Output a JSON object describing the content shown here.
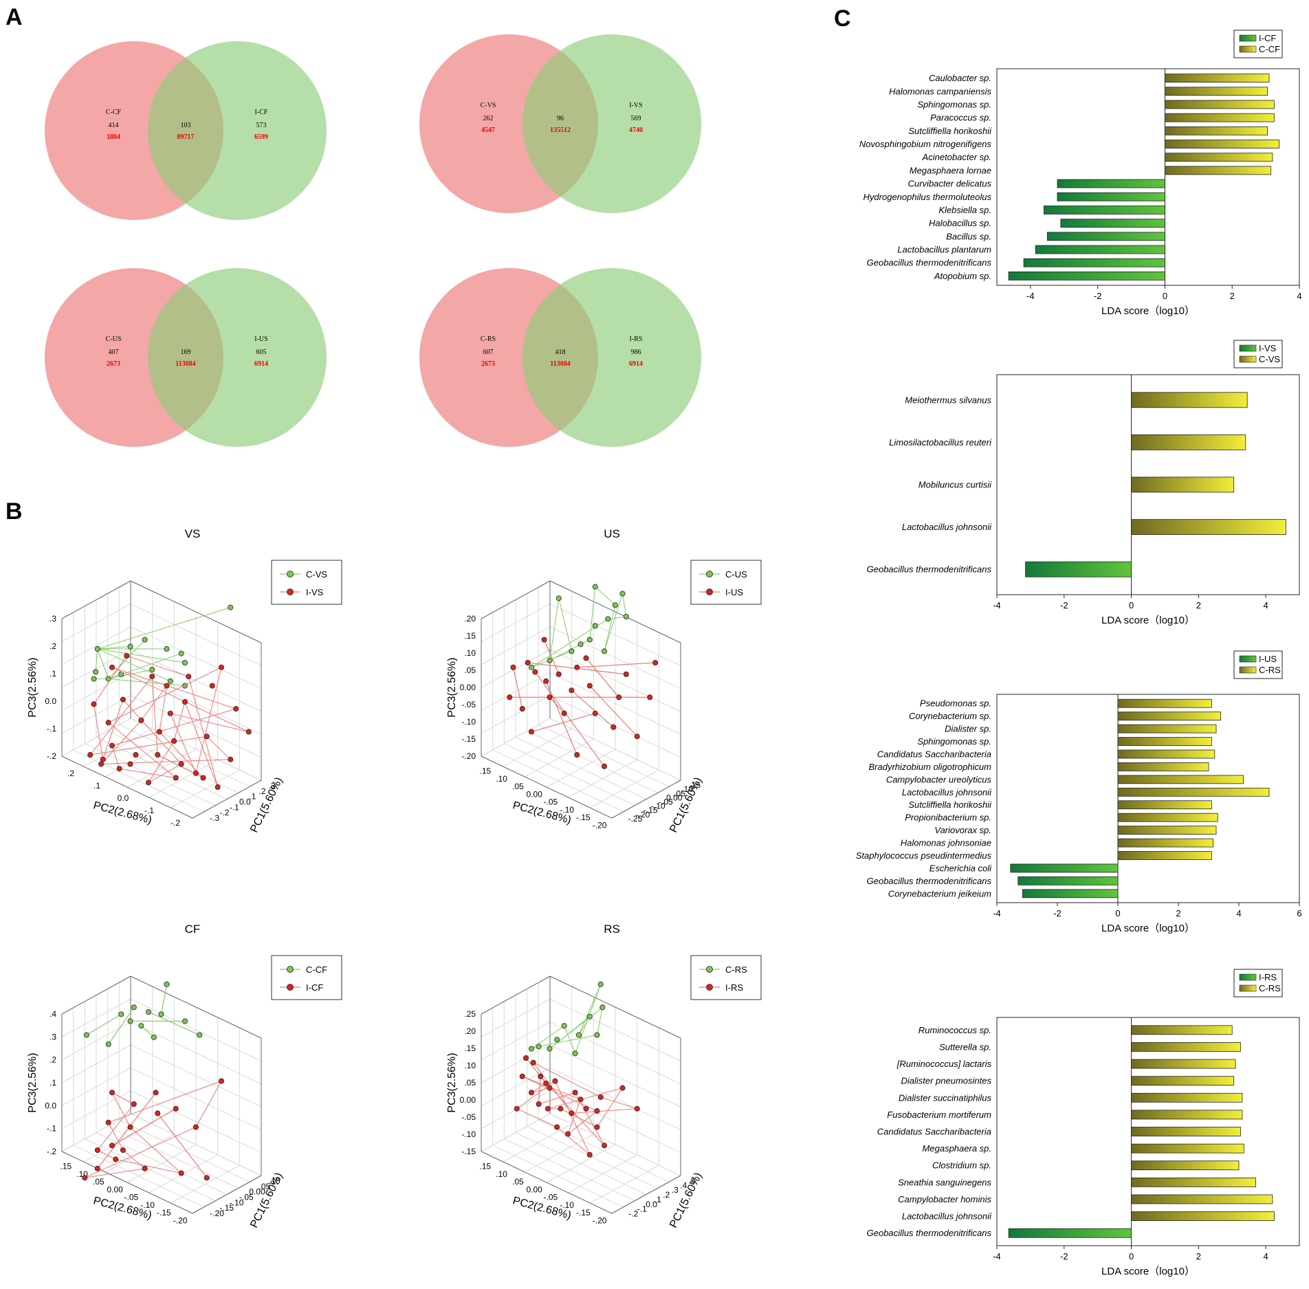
{
  "panel_letters": {
    "a": "A",
    "b": "B",
    "c": "C"
  },
  "colors": {
    "venn_red": "#f08e8e",
    "venn_green": "#8fcc79",
    "venn_count_red": "#ee0000",
    "pcoa_green": "#7ac74f",
    "pcoa_green_line": "#86c96b",
    "pcoa_red": "#d9241c",
    "pcoa_red_line": "#ea7772",
    "lda_green_dark": "#127a3a",
    "lda_green_light": "#5fc53b",
    "lda_yellow_dark": "#6f6a20",
    "lda_yellow_light": "#f2ee3a"
  },
  "chart_data": [
    {
      "type": "venn",
      "id": "venn-cf",
      "left": {
        "label": "C-CF",
        "unique": "414",
        "reads": "1804"
      },
      "right": {
        "label": "I-CF",
        "unique": "573",
        "reads": "6599"
      },
      "overlap": {
        "shared": "103",
        "reads": "89717"
      }
    },
    {
      "type": "venn",
      "id": "venn-vs",
      "left": {
        "label": "C-VS",
        "unique": "262",
        "reads": "4547"
      },
      "right": {
        "label": "I-VS",
        "unique": "569",
        "reads": "4740"
      },
      "overlap": {
        "shared": "96",
        "reads": "135512"
      }
    },
    {
      "type": "venn",
      "id": "venn-us",
      "left": {
        "label": "C-US",
        "unique": "407",
        "reads": "2673"
      },
      "right": {
        "label": "I-US",
        "unique": "605",
        "reads": "6914"
      },
      "overlap": {
        "shared": "169",
        "reads": "113084"
      }
    },
    {
      "type": "venn",
      "id": "venn-rs",
      "left": {
        "label": "C-RS",
        "unique": "607",
        "reads": "2673"
      },
      "right": {
        "label": "I-RS",
        "unique": "986",
        "reads": "6914"
      },
      "overlap": {
        "shared": "418",
        "reads": "113084"
      }
    },
    {
      "type": "scatter3d",
      "id": "pcoa-vs",
      "title": "VS",
      "xlabel": "PC2(2.68%)",
      "ylabel": "PC3(2.56%)",
      "zlabel": "PC1(5.60%)",
      "xticks": [
        ".2",
        ".1",
        "0.0",
        "-.1",
        "-.2"
      ],
      "yticks": [
        ".3",
        ".2",
        ".1",
        "0.0",
        "-.1",
        "-.2"
      ],
      "zticks": [
        ".3",
        ".2",
        ".1",
        "0.0",
        "-.1",
        "-.2",
        "-.3"
      ],
      "legend": [
        "C-VS",
        "I-VS"
      ],
      "groups": [
        {
          "name": "C-VS",
          "points": [
            [
              0.85,
              0.84
            ],
            [
              0.38,
              0.7
            ],
            [
              0.3,
              0.67
            ],
            [
              0.12,
              0.66
            ],
            [
              0.5,
              0.66
            ],
            [
              0.58,
              0.64
            ],
            [
              0.6,
              0.6
            ],
            [
              0.42,
              0.57
            ],
            [
              0.11,
              0.56
            ],
            [
              0.25,
              0.55
            ],
            [
              0.18,
              0.53
            ],
            [
              0.1,
              0.53
            ],
            [
              0.52,
              0.52
            ],
            [
              0.6,
              0.5
            ]
          ]
        },
        {
          "name": "I-VS",
          "points": [
            [
              0.28,
              0.63
            ],
            [
              0.2,
              0.58
            ],
            [
              0.42,
              0.54
            ],
            [
              0.62,
              0.54
            ],
            [
              0.8,
              0.58
            ],
            [
              0.75,
              0.5
            ],
            [
              0.6,
              0.43
            ],
            [
              0.52,
              0.38
            ],
            [
              0.36,
              0.35
            ],
            [
              0.1,
              0.42
            ],
            [
              0.95,
              0.3
            ],
            [
              0.72,
              0.28
            ],
            [
              0.54,
              0.26
            ],
            [
              0.2,
              0.24
            ],
            [
              0.08,
              0.2
            ],
            [
              0.15,
              0.18
            ],
            [
              0.3,
              0.16
            ],
            [
              0.45,
              0.2
            ],
            [
              0.58,
              0.16
            ],
            [
              0.66,
              0.12
            ],
            [
              0.85,
              0.18
            ],
            [
              0.4,
              0.08
            ],
            [
              0.55,
              0.1
            ],
            [
              0.7,
              0.1
            ],
            [
              0.78,
              0.06
            ],
            [
              0.24,
              0.14
            ],
            [
              0.14,
              0.16
            ],
            [
              0.33,
              0.2
            ],
            [
              0.88,
              0.4
            ],
            [
              0.5,
              0.5
            ],
            [
              0.26,
              0.44
            ],
            [
              0.18,
              0.34
            ],
            [
              0.46,
              0.3
            ]
          ]
        }
      ]
    },
    {
      "type": "scatter3d",
      "id": "pcoa-us",
      "title": "US",
      "xlabel": "PC2(2.68%)",
      "ylabel": "PC3(2.56%)",
      "zlabel": "PC1(5.60%)",
      "xticks": [
        ".15",
        ".10",
        ".05",
        "0.00",
        "-.05",
        "-.10",
        "-.15",
        "-.20"
      ],
      "yticks": [
        ".20",
        ".15",
        ".10",
        ".05",
        "0.00",
        "-.05",
        "-.10",
        "-.15",
        "-.20"
      ],
      "zticks": [
        ".15",
        ".10",
        ".05",
        "0.00",
        "-.05",
        "-.10",
        "-.15",
        "-.20",
        "-.25"
      ],
      "legend": [
        "C-US",
        "I-US"
      ],
      "groups": [
        {
          "name": "C-US",
          "points": [
            [
              0.55,
              0.93
            ],
            [
              0.35,
              0.88
            ],
            [
              0.7,
              0.9
            ],
            [
              0.66,
              0.85
            ],
            [
              0.72,
              0.8
            ],
            [
              0.62,
              0.79
            ],
            [
              0.55,
              0.76
            ],
            [
              0.52,
              0.7
            ],
            [
              0.47,
              0.68
            ],
            [
              0.42,
              0.65
            ],
            [
              0.3,
              0.61
            ],
            [
              0.6,
              0.65
            ],
            [
              0.2,
              0.58
            ]
          ]
        },
        {
          "name": "I-US",
          "points": [
            [
              0.27,
              0.7
            ],
            [
              0.1,
              0.58
            ],
            [
              0.22,
              0.56
            ],
            [
              0.35,
              0.55
            ],
            [
              0.45,
              0.58
            ],
            [
              0.52,
              0.5
            ],
            [
              0.72,
              0.55
            ],
            [
              0.88,
              0.6
            ],
            [
              0.3,
              0.45
            ],
            [
              0.08,
              0.45
            ],
            [
              0.15,
              0.4
            ],
            [
              0.38,
              0.38
            ],
            [
              0.55,
              0.38
            ],
            [
              0.65,
              0.32
            ],
            [
              0.78,
              0.28
            ],
            [
              0.2,
              0.3
            ],
            [
              0.45,
              0.2
            ],
            [
              0.6,
              0.15
            ],
            [
              0.85,
              0.45
            ],
            [
              0.28,
              0.52
            ],
            [
              0.5,
              0.62
            ],
            [
              0.18,
              0.6
            ],
            [
              0.42,
              0.48
            ],
            [
              0.68,
              0.45
            ]
          ]
        }
      ]
    },
    {
      "type": "scatter3d",
      "id": "pcoa-cf",
      "title": "CF",
      "xlabel": "PC2(2.68%)",
      "ylabel": "PC3(2.56%)",
      "zlabel": "PC1(5.60%)",
      "xticks": [
        ".15",
        ".10",
        ".05",
        "0.00",
        "-.05",
        "-.10",
        "-.15",
        "-.20"
      ],
      "yticks": [
        ".4",
        ".3",
        ".2",
        ".1",
        "0.0",
        "-.1",
        "-.2"
      ],
      "zticks": [
        ".10",
        ".05",
        "0.00",
        "-.05",
        "-.10",
        "-.15",
        "-.20"
      ],
      "legend": [
        "C-CF",
        "I-CF"
      ],
      "groups": [
        {
          "name": "C-CF",
          "points": [
            [
              0.5,
              0.92
            ],
            [
              0.32,
              0.82
            ],
            [
              0.4,
              0.8
            ],
            [
              0.47,
              0.79
            ],
            [
              0.6,
              0.76
            ],
            [
              0.68,
              0.7
            ],
            [
              0.25,
              0.79
            ],
            [
              0.3,
              0.76
            ],
            [
              0.36,
              0.74
            ],
            [
              0.06,
              0.7
            ],
            [
              0.18,
              0.66
            ],
            [
              0.43,
              0.69
            ]
          ]
        },
        {
          "name": "I-CF",
          "points": [
            [
              0.2,
              0.45
            ],
            [
              0.44,
              0.45
            ],
            [
              0.8,
              0.5
            ],
            [
              0.32,
              0.4
            ],
            [
              0.45,
              0.36
            ],
            [
              0.18,
              0.32
            ],
            [
              0.12,
              0.2
            ],
            [
              0.2,
              0.22
            ],
            [
              0.26,
              0.2
            ],
            [
              0.22,
              0.16
            ],
            [
              0.12,
              0.12
            ],
            [
              0.38,
              0.12
            ],
            [
              0.58,
              0.1
            ],
            [
              0.72,
              0.08
            ],
            [
              0.05,
              0.08
            ],
            [
              0.3,
              0.3
            ],
            [
              0.55,
              0.38
            ],
            [
              0.66,
              0.3
            ]
          ]
        }
      ]
    },
    {
      "type": "scatter3d",
      "id": "pcoa-rs",
      "title": "RS",
      "xlabel": "PC2(2.68%)",
      "ylabel": "PC3(2.56%)",
      "zlabel": "PC1(5.60%)",
      "xticks": [
        ".15",
        ".10",
        ".05",
        "0.00",
        "-.05",
        "-.10",
        "-.15",
        "-.20"
      ],
      "yticks": [
        ".25",
        ".20",
        ".15",
        ".10",
        ".05",
        "0.00",
        "-.05",
        "-.10",
        "-.15"
      ],
      "zticks": [
        ".5",
        ".4",
        ".3",
        ".2",
        ".1",
        "0.0",
        "-.1",
        "-.2"
      ],
      "legend": [
        "C-RS",
        "I-RS"
      ],
      "groups": [
        {
          "name": "C-RS",
          "points": [
            [
              0.58,
              0.92
            ],
            [
              0.59,
              0.82
            ],
            [
              0.52,
              0.78
            ],
            [
              0.46,
              0.7
            ],
            [
              0.38,
              0.74
            ],
            [
              0.34,
              0.68
            ],
            [
              0.3,
              0.64
            ],
            [
              0.24,
              0.65
            ],
            [
              0.2,
              0.64
            ],
            [
              0.44,
              0.62
            ],
            [
              0.56,
              0.7
            ]
          ]
        },
        {
          "name": "I-RS",
          "points": [
            [
              0.17,
              0.6
            ],
            [
              0.21,
              0.58
            ],
            [
              0.25,
              0.52
            ],
            [
              0.28,
              0.49
            ],
            [
              0.33,
              0.5
            ],
            [
              0.15,
              0.52
            ],
            [
              0.12,
              0.38
            ],
            [
              0.24,
              0.4
            ],
            [
              0.29,
              0.38
            ],
            [
              0.36,
              0.38
            ],
            [
              0.42,
              0.36
            ],
            [
              0.47,
              0.42
            ],
            [
              0.5,
              0.38
            ],
            [
              0.56,
              0.37
            ],
            [
              0.58,
              0.43
            ],
            [
              0.7,
              0.47
            ],
            [
              0.56,
              0.3
            ],
            [
              0.6,
              0.22
            ],
            [
              0.52,
              0.18
            ],
            [
              0.4,
              0.27
            ],
            [
              0.34,
              0.3
            ],
            [
              0.3,
              0.47
            ],
            [
              0.44,
              0.45
            ],
            [
              0.78,
              0.38
            ],
            [
              0.2,
              0.45
            ]
          ]
        }
      ]
    },
    {
      "type": "bar",
      "orientation": "horizontal",
      "id": "lda-cf",
      "xlabel": "LDA score（log10）",
      "xlim": [
        -5,
        4
      ],
      "xticks": [
        "-4",
        "-2",
        "0",
        "2",
        "4"
      ],
      "xtick_values": [
        -4,
        -2,
        0,
        2,
        4
      ],
      "legend": [
        "I-CF",
        "C-CF"
      ],
      "categories": [
        "Caulobacter sp.",
        "Halomonas campaniensis",
        "Sphingomonas sp.",
        "Paracoccus sp.",
        "Sutcliffiella horikoshii",
        "Novosphingobium nitrogenifigens",
        "Acinetobacter sp.",
        "Megasphaera lornae",
        "Curvibacter delicatus",
        "Hydrogenophilus thermoluteolus",
        "Klebsiella sp.",
        "Halobacillus sp.",
        "Bacillus sp.",
        "Lactobacillus plantarum",
        "Geobacillus thermodenitrificans",
        "Atopobium sp."
      ],
      "values": [
        3.1,
        3.05,
        3.25,
        3.25,
        3.05,
        3.4,
        3.2,
        3.15,
        -3.2,
        -3.2,
        -3.6,
        -3.1,
        -3.5,
        -3.85,
        -4.2,
        -4.65
      ]
    },
    {
      "type": "bar",
      "orientation": "horizontal",
      "id": "lda-vs",
      "xlabel": "LDA score（log10）",
      "xlim": [
        -4,
        5
      ],
      "xticks": [
        "-4",
        "-2",
        "0",
        "2",
        "4"
      ],
      "xtick_values": [
        -4,
        -2,
        0,
        2,
        4
      ],
      "legend": [
        "I-VS",
        "C-VS"
      ],
      "categories": [
        "Meiothermus silvanus",
        "Limosilactobacillus reuteri",
        "Mobiluncus curtisii",
        "Lactobacillus johnsonii",
        "Geobacillus thermodenitrificans"
      ],
      "values": [
        3.45,
        3.4,
        3.05,
        4.6,
        -3.15
      ]
    },
    {
      "type": "bar",
      "orientation": "horizontal",
      "id": "lda-us",
      "xlabel": "LDA score（log10）",
      "xlim": [
        -4,
        6
      ],
      "xticks": [
        "-4",
        "-2",
        "0",
        "2",
        "4",
        "6"
      ],
      "xtick_values": [
        -4,
        -2,
        0,
        2,
        4,
        6
      ],
      "legend": [
        "I-US",
        "C-RS"
      ],
      "categories": [
        "Pseudomonas sp.",
        "Corynebacterium sp.",
        "Dialister sp.",
        "Sphingomonas sp.",
        "Candidatus Saccharibacteria",
        "Bradyrhizobium oligotrophicum",
        "Campylobacter ureolyticus",
        "Lactobacillus johnsonii",
        "Sutcliffiella horikoshii",
        "Propionibacterium sp.",
        "Variovorax sp.",
        "Halomonas johnsoniae",
        "Staphylococcus pseudintermedius",
        "Escherichia coli",
        "Geobacillus thermodenitrificans",
        "Corynebacterium jeikeium"
      ],
      "values": [
        3.1,
        3.4,
        3.25,
        3.1,
        3.2,
        3.0,
        4.15,
        5.0,
        3.1,
        3.3,
        3.25,
        3.15,
        3.1,
        -3.55,
        -3.3,
        -3.15
      ]
    },
    {
      "type": "bar",
      "orientation": "horizontal",
      "id": "lda-rs",
      "xlabel": "LDA score（log10）",
      "xlim": [
        -4,
        5
      ],
      "xticks": [
        "-4",
        "-2",
        "0",
        "2",
        "4"
      ],
      "xtick_values": [
        -4,
        -2,
        0,
        2,
        4
      ],
      "legend": [
        "I-RS",
        "C-RS"
      ],
      "categories": [
        "Ruminococcus sp.",
        "Sutterella sp.",
        "[Ruminococcus] lactaris",
        "Dialister pneumosintes",
        "Dialister succinatiphilus",
        "Fusobacterium mortiferum",
        "Candidatus Saccharibacteria",
        "Megasphaera sp.",
        "Clostridium sp.",
        "Sneathia sanguinegens",
        "Campylobacter hominis",
        "Lactobacillus johnsonii",
        "Geobacillus thermodenitrificans"
      ],
      "values": [
        3.0,
        3.25,
        3.1,
        3.05,
        3.3,
        3.3,
        3.25,
        3.35,
        3.2,
        3.7,
        4.2,
        4.25,
        -3.65
      ]
    }
  ]
}
